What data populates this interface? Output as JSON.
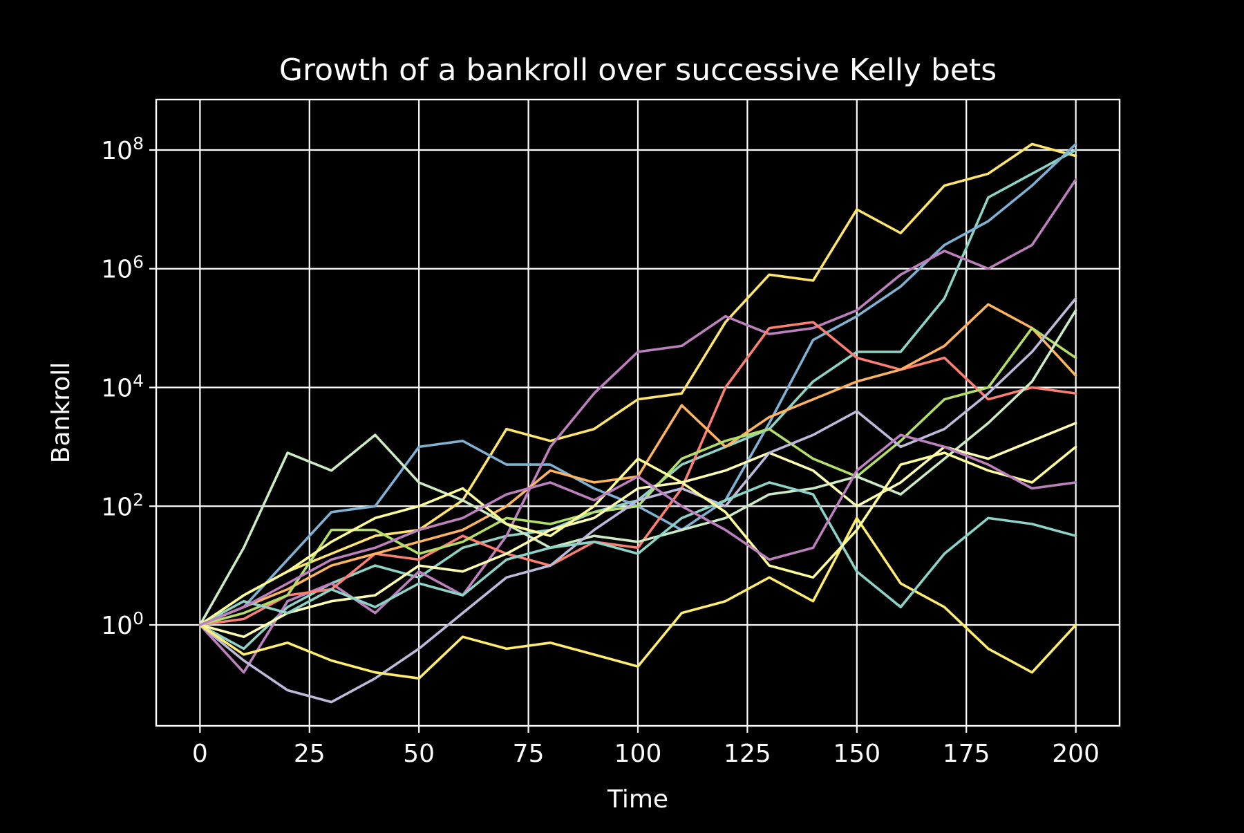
{
  "chart_data": {
    "type": "line",
    "title": "Growth of a bankroll over successive Kelly bets",
    "xlabel": "Time",
    "ylabel": "Bankroll",
    "xlim": [
      -10,
      210
    ],
    "ylim_log10": [
      -1.7,
      8.85
    ],
    "yscale": "log",
    "grid": true,
    "legend": "none",
    "x_ticks": [
      0,
      25,
      50,
      75,
      100,
      125,
      150,
      175,
      200
    ],
    "y_ticks": [
      {
        "exp": 0,
        "base": "10",
        "sup": "0"
      },
      {
        "exp": 2,
        "base": "10",
        "sup": "2"
      },
      {
        "exp": 4,
        "base": "10",
        "sup": "4"
      },
      {
        "exp": 6,
        "base": "10",
        "sup": "6"
      },
      {
        "exp": 8,
        "base": "10",
        "sup": "8"
      }
    ],
    "x": [
      0,
      10,
      20,
      30,
      40,
      50,
      60,
      70,
      80,
      90,
      100,
      110,
      120,
      130,
      140,
      150,
      160,
      170,
      180,
      190,
      200
    ],
    "series": [
      {
        "color": "#ffe46e",
        "log10_values": [
          0,
          0.5,
          0.9,
          1.2,
          1.5,
          1.6,
          2.1,
          3.3,
          3.1,
          3.3,
          3.8,
          3.9,
          5.1,
          5.9,
          5.8,
          7.0,
          6.6,
          7.4,
          7.6,
          8.1,
          7.9
        ]
      },
      {
        "color": "#8fd3c7",
        "log10_values": [
          0,
          -0.4,
          0.3,
          0.7,
          1.0,
          0.8,
          1.3,
          1.5,
          1.6,
          1.9,
          2.1,
          2.7,
          3.0,
          3.3,
          4.1,
          4.6,
          4.6,
          5.5,
          7.2,
          7.6,
          8.0
        ]
      },
      {
        "color": "#80b1d3",
        "log10_values": [
          0,
          0.3,
          1.1,
          1.9,
          2.0,
          3.0,
          3.1,
          2.7,
          2.7,
          2.3,
          2.0,
          1.6,
          2.1,
          3.4,
          4.8,
          5.2,
          5.7,
          6.4,
          6.8,
          7.4,
          8.1
        ]
      },
      {
        "color": "#bc80bd",
        "log10_values": [
          0,
          -0.8,
          0.4,
          0.7,
          0.2,
          0.9,
          0.5,
          1.5,
          3.0,
          3.9,
          4.6,
          4.7,
          5.2,
          4.9,
          5.0,
          5.3,
          5.9,
          6.3,
          6.0,
          6.4,
          7.5
        ]
      },
      {
        "color": "#fb8072",
        "log10_values": [
          0,
          0.1,
          0.5,
          0.6,
          1.2,
          1.1,
          1.5,
          1.2,
          1.0,
          1.4,
          1.3,
          2.3,
          4.0,
          5.0,
          5.1,
          4.5,
          4.3,
          4.5,
          3.8,
          4.0,
          3.9
        ]
      },
      {
        "color": "#fdb462",
        "log10_values": [
          0,
          0.3,
          0.6,
          1.0,
          1.2,
          1.4,
          1.6,
          2.0,
          2.6,
          2.4,
          2.5,
          3.7,
          3.0,
          3.5,
          3.8,
          4.1,
          4.3,
          4.7,
          5.4,
          5.0,
          4.2
        ]
      },
      {
        "color": "#b3de69",
        "log10_values": [
          0,
          0.2,
          0.5,
          1.6,
          1.6,
          1.2,
          1.4,
          1.8,
          1.7,
          1.9,
          2.0,
          2.8,
          3.1,
          3.3,
          2.8,
          2.5,
          3.1,
          3.8,
          4.0,
          5.0,
          4.5
        ]
      },
      {
        "color": "#ccebc5",
        "log10_values": [
          0,
          1.3,
          2.9,
          2.6,
          3.2,
          2.4,
          2.1,
          1.7,
          1.3,
          1.5,
          1.4,
          1.6,
          1.8,
          2.2,
          2.3,
          2.5,
          2.2,
          2.8,
          3.4,
          4.1,
          5.3
        ]
      },
      {
        "color": "#ffffb3",
        "log10_values": [
          0,
          -0.2,
          0.2,
          0.4,
          0.5,
          1.0,
          0.9,
          1.2,
          1.6,
          1.8,
          2.3,
          2.4,
          2.6,
          2.9,
          2.6,
          2.0,
          2.4,
          3.0,
          2.8,
          3.1,
          3.4
        ]
      },
      {
        "color": "#bebada",
        "log10_values": [
          0,
          -0.6,
          -1.1,
          -1.3,
          -0.9,
          -0.4,
          0.2,
          0.8,
          1.0,
          1.6,
          2.1,
          2.3,
          2.0,
          2.9,
          3.2,
          3.6,
          3.0,
          3.3,
          3.9,
          4.6,
          5.5
        ]
      },
      {
        "color": "#ffed6f",
        "log10_values": [
          0,
          -0.5,
          -0.3,
          -0.6,
          -0.8,
          -0.9,
          -0.2,
          -0.4,
          -0.3,
          -0.5,
          -0.7,
          0.2,
          0.4,
          0.8,
          0.4,
          1.8,
          0.7,
          0.3,
          -0.4,
          -0.8,
          0
        ]
      },
      {
        "color": "#8dd3c7",
        "log10_values": [
          0,
          0.4,
          0.2,
          0.6,
          0.3,
          0.7,
          0.5,
          1.1,
          1.3,
          1.4,
          1.2,
          1.8,
          2.1,
          2.4,
          2.2,
          0.9,
          0.3,
          1.2,
          1.8,
          1.7,
          1.5
        ]
      },
      {
        "color": "#ffff99",
        "log10_values": [
          0,
          0.5,
          0.9,
          1.4,
          1.8,
          2.0,
          2.3,
          1.7,
          1.5,
          2.0,
          2.8,
          2.4,
          1.9,
          1.0,
          0.8,
          1.6,
          2.7,
          2.9,
          2.6,
          2.4,
          3.0
        ]
      },
      {
        "color": "#bc80bd",
        "log10_values": [
          0,
          0.3,
          0.7,
          1.1,
          1.3,
          1.6,
          1.8,
          2.2,
          2.4,
          2.1,
          2.5,
          2.0,
          1.6,
          1.1,
          1.3,
          2.6,
          3.2,
          3.0,
          2.7,
          2.3,
          2.4
        ]
      }
    ]
  }
}
